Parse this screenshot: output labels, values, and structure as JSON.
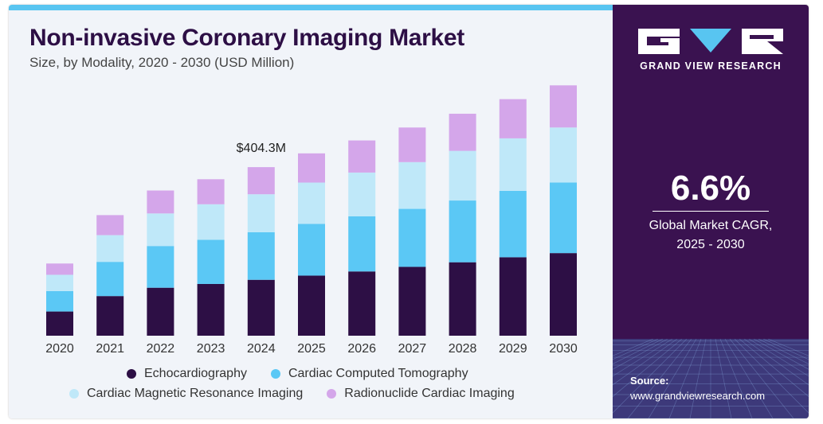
{
  "title": "Non-invasive Coronary Imaging Market",
  "subtitle": "Size, by Modality, 2020 - 2030 (USD Million)",
  "brand": {
    "name": "GRAND VIEW RESEARCH"
  },
  "cagr": {
    "value": "6.6%",
    "label_line1": "Global Market CAGR,",
    "label_line2": "2025 - 2030"
  },
  "source": {
    "label": "Source:",
    "url": "www.grandviewresearch.com"
  },
  "colors": {
    "Echocardiography": "#2d0f45",
    "Cardiac Computed Tomography": "#5bc8f5",
    "Cardiac Magnetic Resonance Imaging": "#bfe8f9",
    "Radionuclide Cardiac Imaging": "#d4a6ea",
    "panel": "#3a1250",
    "accent": "#58c5f1"
  },
  "chart_data": {
    "type": "bar",
    "stacked": true,
    "title": "Non-invasive Coronary Imaging Market",
    "subtitle": "Size, by Modality, 2020 - 2030 (USD Million)",
    "categories": [
      "2020",
      "2021",
      "2022",
      "2023",
      "2024",
      "2025",
      "2026",
      "2027",
      "2028",
      "2029",
      "2030"
    ],
    "series": [
      {
        "name": "Echocardiography",
        "values": [
          58,
          95,
          115,
          124,
          134,
          144,
          154,
          165,
          176,
          188,
          198
        ]
      },
      {
        "name": "Cardiac Computed Tomography",
        "values": [
          49,
          82,
          100,
          106,
          114,
          124,
          132,
          139,
          148,
          159,
          169
        ]
      },
      {
        "name": "Cardiac Magnetic Resonance Imaging",
        "values": [
          39,
          64,
          78,
          85,
          91,
          99,
          105,
          112,
          119,
          126,
          132
        ]
      },
      {
        "name": "Radionuclide Cardiac Imaging",
        "values": [
          27,
          48,
          55,
          60,
          65,
          70,
          77,
          83,
          89,
          94,
          101
        ]
      }
    ],
    "annotations": [
      {
        "category": "2024",
        "text": "$404.3M"
      }
    ],
    "ylim": [
      0,
      600
    ],
    "grid": false,
    "legend": "bottom"
  }
}
